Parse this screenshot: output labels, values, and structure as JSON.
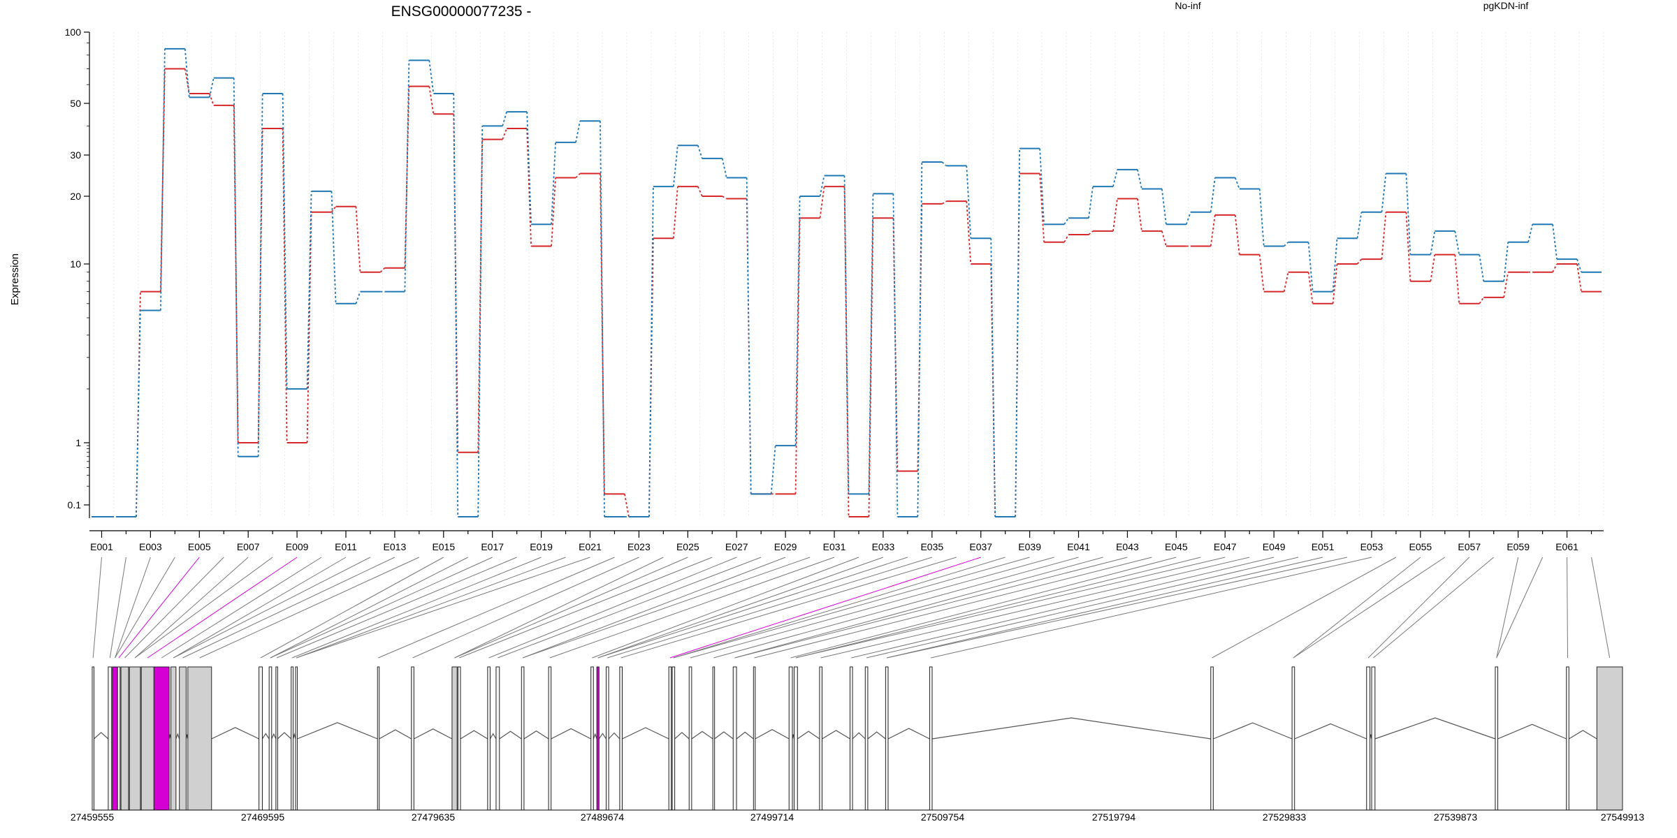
{
  "colors": {
    "no_inf": "#d62728",
    "pgkdn_inf": "#1f77b4",
    "highlight": "#d400d4",
    "exon_fill": "#d0d0d0",
    "axis": "#000000",
    "grid": "#cccccc"
  },
  "chart_data": {
    "type": "line",
    "title": "ENSG00000077235 -",
    "ylabel": "Expression",
    "yscale": "log (pseudo, with zero floor)",
    "ylim": [
      0,
      100
    ],
    "yticks": [
      0.1,
      1,
      10,
      20,
      30,
      50,
      100
    ],
    "ytick_labels": [
      "0.1",
      "1",
      "10",
      "20",
      "30",
      "50",
      "100"
    ],
    "grid": true,
    "legend_placement": "top-right",
    "categories": [
      "E001",
      "E002",
      "E003",
      "E004",
      "E005",
      "E006",
      "E007",
      "E008",
      "E009",
      "E010",
      "E011",
      "E012",
      "E013",
      "E014",
      "E015",
      "E016",
      "E017",
      "E018",
      "E019",
      "E020",
      "E021",
      "E022",
      "E023",
      "E024",
      "E025",
      "E026",
      "E027",
      "E028",
      "E029",
      "E030",
      "E031",
      "E032",
      "E033",
      "E034",
      "E035",
      "E036",
      "E037",
      "E038",
      "E039",
      "E040",
      "E041",
      "E042",
      "E043",
      "E044",
      "E045",
      "E046",
      "E047",
      "E048",
      "E049",
      "E050",
      "E051",
      "E052",
      "E053",
      "E054",
      "E055",
      "E056",
      "E057",
      "E058",
      "E059",
      "E060",
      "E061",
      "E062"
    ],
    "xtick_labels": [
      "E001",
      "E003",
      "E005",
      "E007",
      "E009",
      "E011",
      "E013",
      "E015",
      "E017",
      "E019",
      "E021",
      "E023",
      "E025",
      "E027",
      "E029",
      "E031",
      "E033",
      "E035",
      "E037",
      "E039",
      "E041",
      "E043",
      "E045",
      "E047",
      "E049",
      "E051",
      "E053",
      "E055",
      "E057",
      "E059",
      "E061"
    ],
    "series": [
      {
        "name": "No-inf",
        "values": [
          0,
          0,
          7,
          70,
          55,
          49,
          1,
          39,
          1,
          17,
          18,
          9,
          9.5,
          59,
          45,
          0.7,
          35,
          39,
          12,
          24,
          25,
          0.15,
          0,
          13,
          22,
          20,
          19.5,
          0.15,
          0.15,
          16,
          22,
          0,
          16,
          0.35,
          18.5,
          19,
          10,
          0,
          25,
          12.5,
          13.5,
          14,
          19.5,
          14,
          12,
          12,
          16.5,
          11,
          7,
          9,
          6,
          10,
          10.5,
          17,
          8,
          11,
          6,
          6.5,
          9,
          9,
          10,
          7
        ]
      },
      {
        "name": "pgKDN-inf",
        "values": [
          0,
          0,
          5.5,
          85,
          53,
          64,
          0.6,
          55,
          2,
          21,
          6,
          7,
          7,
          76,
          55,
          0,
          40,
          46,
          15,
          34,
          42,
          0,
          0,
          22,
          33,
          29,
          24,
          0.15,
          0.9,
          20,
          24.5,
          0.15,
          20.5,
          0,
          28,
          27,
          13,
          0,
          32,
          15,
          16,
          22,
          26,
          21.5,
          15,
          17,
          24,
          21.5,
          12,
          12.5,
          7,
          13,
          17,
          25,
          11,
          14,
          11,
          8,
          12.5,
          15,
          10.5,
          9
        ]
      }
    ],
    "coordinate_labels": [
      "27459555",
      "27469595",
      "27479635",
      "27489674",
      "27499714",
      "27509754",
      "27519794",
      "27529833",
      "27539873",
      "27549913"
    ],
    "gene_start": 27459555,
    "gene_end": 27549913,
    "exons": [
      [
        27459555,
        27459655
      ],
      [
        27460500,
        27460700
      ],
      [
        27460750,
        27461050
      ],
      [
        27461050,
        27461200
      ],
      [
        27461250,
        27461700
      ],
      [
        27461750,
        27462400
      ],
      [
        27462450,
        27463200
      ],
      [
        27463200,
        27464100
      ],
      [
        27464200,
        27464500
      ],
      [
        27464700,
        27465100
      ],
      [
        27465200,
        27466600
      ],
      [
        27469400,
        27469600
      ],
      [
        27470000,
        27470150
      ],
      [
        27470400,
        27470500
      ],
      [
        27471300,
        27471420
      ],
      [
        27471560,
        27471660
      ],
      [
        27476400,
        27476500
      ],
      [
        27478400,
        27478550
      ],
      [
        27480800,
        27481100
      ],
      [
        27481150,
        27481300
      ],
      [
        27482900,
        27483050
      ],
      [
        27483400,
        27483600
      ],
      [
        27484900,
        27485050
      ],
      [
        27486500,
        27486650
      ],
      [
        27489000,
        27489150
      ],
      [
        27489350,
        27489480
      ],
      [
        27489900,
        27490050
      ],
      [
        27490700,
        27490850
      ],
      [
        27493600,
        27493750
      ],
      [
        27493800,
        27493950
      ],
      [
        27494800,
        27494950
      ],
      [
        27496200,
        27496300
      ],
      [
        27497400,
        27497600
      ],
      [
        27498600,
        27498700
      ],
      [
        27500700,
        27500900
      ],
      [
        27501000,
        27501200
      ],
      [
        27502500,
        27502650
      ],
      [
        27504300,
        27504450
      ],
      [
        27505200,
        27505350
      ],
      [
        27506400,
        27506550
      ],
      [
        27509000,
        27509150
      ],
      [
        27525600,
        27525750
      ],
      [
        27530400,
        27530550
      ],
      [
        27534800,
        27535000
      ],
      [
        27535100,
        27535300
      ],
      [
        27542400,
        27542550
      ],
      [
        27546600,
        27546750
      ],
      [
        27548400,
        27549913
      ]
    ],
    "highlighted_exons": [
      2,
      7,
      25
    ]
  },
  "legend": [
    {
      "name": "No-inf",
      "color": "#d62728"
    },
    {
      "name": "pgKDN-inf",
      "color": "#1f77b4"
    }
  ]
}
